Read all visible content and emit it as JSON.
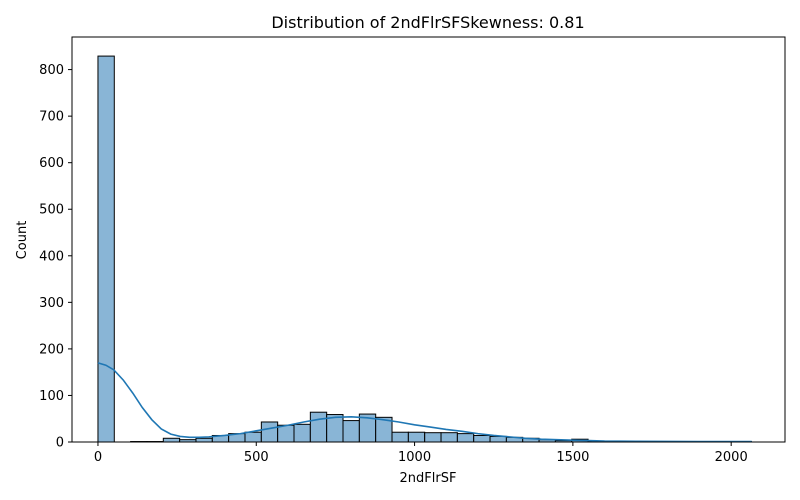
{
  "chart_data": {
    "type": "bar",
    "title": "Distribution of 2ndFlrSFSkewness: 0.81",
    "xlabel": "2ndFlrSF",
    "ylabel": "Count",
    "xlim": [
      -82,
      2170
    ],
    "ylim": [
      0,
      870
    ],
    "xticks": [
      0,
      500,
      1000,
      1500,
      2000
    ],
    "yticks": [
      0,
      100,
      200,
      300,
      400,
      500,
      600,
      700,
      800
    ],
    "bin_width": 51.6,
    "bins": [
      {
        "x0": 0.0,
        "count": 829
      },
      {
        "x0": 51.6,
        "count": 0
      },
      {
        "x0": 103.2,
        "count": 1
      },
      {
        "x0": 154.8,
        "count": 1
      },
      {
        "x0": 206.4,
        "count": 8
      },
      {
        "x0": 258.0,
        "count": 5
      },
      {
        "x0": 309.6,
        "count": 8
      },
      {
        "x0": 361.2,
        "count": 14
      },
      {
        "x0": 412.8,
        "count": 18
      },
      {
        "x0": 464.4,
        "count": 21
      },
      {
        "x0": 516.0,
        "count": 43
      },
      {
        "x0": 567.6,
        "count": 36
      },
      {
        "x0": 619.2,
        "count": 38
      },
      {
        "x0": 670.8,
        "count": 64
      },
      {
        "x0": 722.4,
        "count": 59
      },
      {
        "x0": 774.0,
        "count": 46
      },
      {
        "x0": 825.6,
        "count": 60
      },
      {
        "x0": 877.2,
        "count": 53
      },
      {
        "x0": 928.8,
        "count": 21
      },
      {
        "x0": 980.4,
        "count": 21
      },
      {
        "x0": 1032.0,
        "count": 20
      },
      {
        "x0": 1083.6,
        "count": 20
      },
      {
        "x0": 1135.2,
        "count": 18
      },
      {
        "x0": 1186.8,
        "count": 14
      },
      {
        "x0": 1238.4,
        "count": 12
      },
      {
        "x0": 1290.0,
        "count": 10
      },
      {
        "x0": 1341.6,
        "count": 8
      },
      {
        "x0": 1393.2,
        "count": 5
      },
      {
        "x0": 1444.8,
        "count": 3
      },
      {
        "x0": 1496.4,
        "count": 6
      },
      {
        "x0": 1548.0,
        "count": 1
      },
      {
        "x0": 1599.6,
        "count": 1
      },
      {
        "x0": 1651.2,
        "count": 0
      },
      {
        "x0": 1702.8,
        "count": 0
      },
      {
        "x0": 1754.4,
        "count": 0
      },
      {
        "x0": 1806.0,
        "count": 0
      },
      {
        "x0": 1857.6,
        "count": 0
      },
      {
        "x0": 1909.2,
        "count": 0
      },
      {
        "x0": 1960.8,
        "count": 0
      },
      {
        "x0": 2012.4,
        "count": 1
      }
    ],
    "kde": {
      "x": [
        0,
        25,
        50,
        80,
        110,
        140,
        170,
        200,
        230,
        260,
        290,
        320,
        350,
        400,
        450,
        500,
        550,
        600,
        650,
        700,
        750,
        800,
        850,
        900,
        950,
        1000,
        1050,
        1100,
        1150,
        1200,
        1250,
        1300,
        1350,
        1400,
        1450,
        1500,
        1550,
        1600,
        1700,
        1800,
        1900,
        2000,
        2065
      ],
      "y": [
        170,
        165,
        155,
        133,
        105,
        74,
        48,
        28,
        17,
        12,
        10,
        10,
        11,
        14,
        18,
        24,
        30,
        36,
        43,
        49,
        53,
        54,
        52,
        48,
        43,
        37,
        32,
        27,
        23,
        18,
        14,
        11,
        8,
        6,
        5,
        4,
        3,
        2,
        1.5,
        1.2,
        1,
        1,
        1
      ]
    },
    "colors": {
      "bar_fill": "#89b5d6",
      "bar_edge": "#000000",
      "kde_line": "#1f77b4",
      "axes": "#000000"
    },
    "grid": false,
    "legend": false
  }
}
